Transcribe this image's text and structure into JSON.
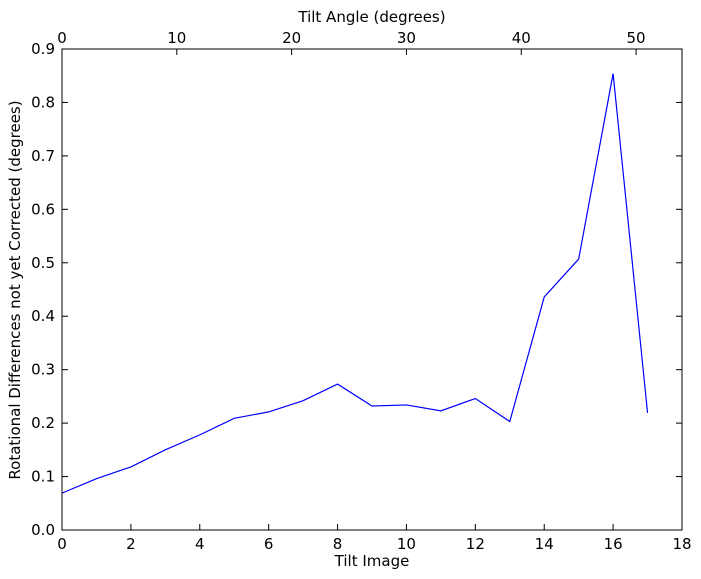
{
  "chart_data": {
    "type": "line",
    "xlabel": "Tilt Image",
    "ylabel": "Rotational Differences not yet Corrected (degrees)",
    "x2label": "Tilt Angle (degrees)",
    "xlim": [
      0,
      18
    ],
    "ylim": [
      0,
      0.9
    ],
    "x2lim": [
      0,
      54
    ],
    "xticks": [
      "0",
      "2",
      "4",
      "6",
      "8",
      "10",
      "12",
      "14",
      "16",
      "18"
    ],
    "xtick_values": [
      0,
      2,
      4,
      6,
      8,
      10,
      12,
      14,
      16,
      18
    ],
    "yticks": [
      "0.0",
      "0.1",
      "0.2",
      "0.3",
      "0.4",
      "0.5",
      "0.6",
      "0.7",
      "0.8",
      "0.9"
    ],
    "ytick_values": [
      0,
      0.1,
      0.2,
      0.3,
      0.4,
      0.5,
      0.6,
      0.7,
      0.8,
      0.9
    ],
    "x2ticks": [
      "0",
      "10",
      "20",
      "30",
      "40",
      "50"
    ],
    "x2tick_values": [
      0,
      10,
      20,
      30,
      40,
      50
    ],
    "grid": false,
    "line_color": "#0000ff",
    "series": [
      {
        "x": [
          0,
          1,
          2,
          3,
          4,
          5,
          6,
          7,
          8,
          9,
          10,
          11,
          12,
          13,
          14,
          15,
          16,
          17
        ],
        "values": [
          0.069,
          0.096,
          0.118,
          0.15,
          0.178,
          0.209,
          0.221,
          0.242,
          0.273,
          0.232,
          0.234,
          0.223,
          0.246,
          0.203,
          0.436,
          0.507,
          0.854,
          0.219
        ]
      }
    ]
  }
}
